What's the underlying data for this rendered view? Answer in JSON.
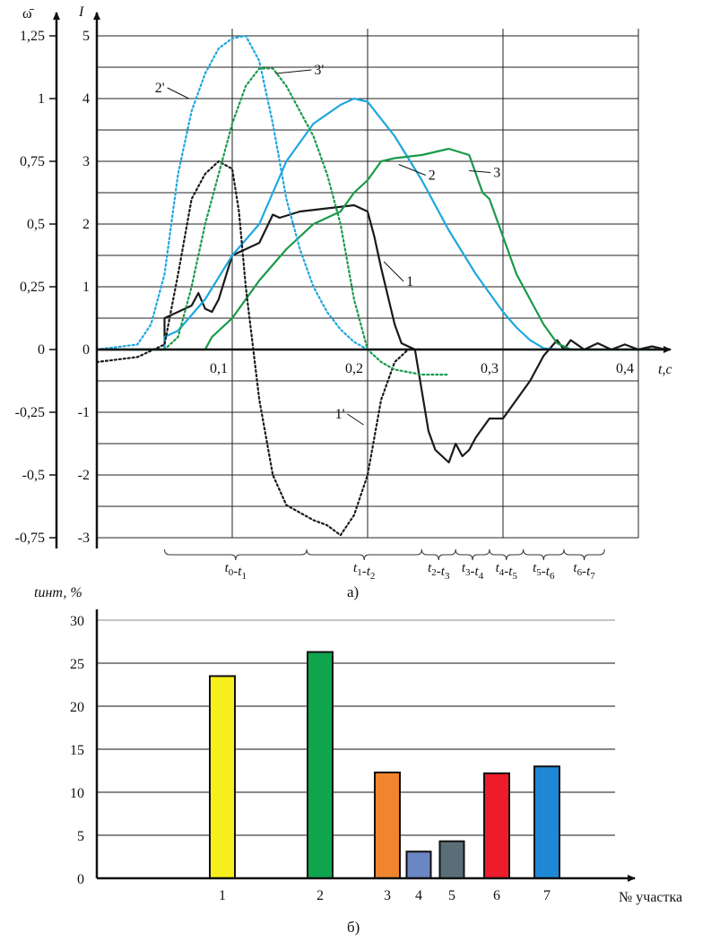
{
  "chart_data": [
    {
      "type": "line",
      "caption": "а)",
      "axis_left": {
        "label": "ω̄",
        "ylim": [
          -0.75,
          1.25
        ],
        "ticks": [
          "1,25",
          "1",
          "0,75",
          "0,5",
          "0,25",
          "0",
          "-0,25",
          "-0,5",
          "-0,75"
        ],
        "tick_values": [
          1.25,
          1,
          0.75,
          0.5,
          0.25,
          0,
          -0.25,
          -0.5,
          -0.75
        ]
      },
      "axis_right": {
        "label": "I",
        "ylim": [
          -3,
          5
        ],
        "ticks": [
          "5",
          "4",
          "3",
          "2",
          "1",
          "0",
          "-1",
          "-2",
          "-3"
        ],
        "tick_values": [
          5,
          4,
          3,
          2,
          1,
          0,
          -1,
          -2,
          -3
        ]
      },
      "x_axis": {
        "label": "t,с",
        "xlim": [
          0,
          0.42
        ],
        "ticks": [
          "0,1",
          "0,2",
          "0,3",
          "0,4"
        ],
        "tick_values": [
          0.1,
          0.2,
          0.3,
          0.4
        ]
      },
      "grid": true,
      "intervals": [
        {
          "label": "t0-t1",
          "range": [
            0.05,
            0.155
          ]
        },
        {
          "label": "t1-t2",
          "range": [
            0.155,
            0.24
          ]
        },
        {
          "label": "t2-t3",
          "range": [
            0.24,
            0.265
          ]
        },
        {
          "label": "t3-t4",
          "range": [
            0.265,
            0.29
          ]
        },
        {
          "label": "t4-t5",
          "range": [
            0.29,
            0.315
          ]
        },
        {
          "label": "t5-t6",
          "range": [
            0.315,
            0.345
          ]
        },
        {
          "label": "t6-t7",
          "range": [
            0.345,
            0.375
          ]
        }
      ],
      "series": [
        {
          "name": "1",
          "axis": "I",
          "style": "solid",
          "color": "#1a1a1a",
          "x": [
            0,
            0.05,
            0.05,
            0.07,
            0.075,
            0.08,
            0.085,
            0.09,
            0.1,
            0.11,
            0.12,
            0.13,
            0.135,
            0.15,
            0.17,
            0.19,
            0.2,
            0.205,
            0.21,
            0.22,
            0.225,
            0.23,
            0.235,
            0.245,
            0.25,
            0.255,
            0.26,
            0.265,
            0.27,
            0.275,
            0.28,
            0.29,
            0.3,
            0.31,
            0.32,
            0.33,
            0.34,
            0.345,
            0.35,
            0.36,
            0.37,
            0.38,
            0.39,
            0.4,
            0.41,
            0.42
          ],
          "y": [
            0,
            0,
            0.5,
            0.7,
            0.9,
            0.65,
            0.6,
            0.8,
            1.5,
            1.6,
            1.7,
            2.15,
            2.1,
            2.2,
            2.25,
            2.3,
            2.2,
            1.8,
            1.3,
            0.4,
            0.1,
            0.05,
            0,
            -1.3,
            -1.6,
            -1.7,
            -1.8,
            -1.5,
            -1.7,
            -1.6,
            -1.4,
            -1.1,
            -1.1,
            -0.8,
            -0.5,
            -0.1,
            0.15,
            0.0,
            0.15,
            0.0,
            0.1,
            0.0,
            0.08,
            0,
            0.05,
            0
          ]
        },
        {
          "name": "2",
          "axis": "I",
          "style": "solid",
          "color": "#1ea7df",
          "x": [
            0,
            0.05,
            0.05,
            0.06,
            0.08,
            0.1,
            0.12,
            0.14,
            0.16,
            0.18,
            0.19,
            0.2,
            0.22,
            0.24,
            0.26,
            0.28,
            0.3,
            0.31,
            0.32,
            0.33,
            0.34,
            0.35,
            0.42
          ],
          "y": [
            0,
            0,
            0.2,
            0.3,
            0.8,
            1.5,
            2.0,
            3.0,
            3.6,
            3.9,
            4.0,
            3.95,
            3.4,
            2.7,
            1.9,
            1.2,
            0.6,
            0.35,
            0.15,
            0.02,
            0,
            0,
            0
          ]
        },
        {
          "name": "3",
          "axis": "I",
          "style": "solid",
          "color": "#199a4a",
          "x": [
            0,
            0.08,
            0.085,
            0.1,
            0.12,
            0.14,
            0.16,
            0.18,
            0.19,
            0.2,
            0.21,
            0.22,
            0.24,
            0.26,
            0.275,
            0.28,
            0.285,
            0.29,
            0.3,
            0.31,
            0.32,
            0.33,
            0.34,
            0.35,
            0.42
          ],
          "y": [
            0,
            0,
            0.2,
            0.5,
            1.1,
            1.6,
            2.0,
            2.2,
            2.5,
            2.7,
            3.0,
            3.05,
            3.1,
            3.2,
            3.1,
            2.8,
            2.5,
            2.4,
            1.8,
            1.2,
            0.8,
            0.4,
            0.1,
            0,
            0
          ]
        },
        {
          "name": "1'",
          "axis": "ω̄",
          "style": "dotted",
          "color": "#1a1a1a",
          "x": [
            0,
            0.03,
            0.05,
            0.06,
            0.07,
            0.08,
            0.09,
            0.1,
            0.105,
            0.11,
            0.12,
            0.13,
            0.14,
            0.15,
            0.16,
            0.17,
            0.18,
            0.19,
            0.2,
            0.21,
            0.22,
            0.23,
            0.24
          ],
          "y": [
            -0.05,
            -0.03,
            0.02,
            0.3,
            0.6,
            0.7,
            0.75,
            0.72,
            0.55,
            0.25,
            -0.2,
            -0.5,
            -0.62,
            -0.65,
            -0.68,
            -0.7,
            -0.74,
            -0.66,
            -0.5,
            -0.2,
            -0.05,
            0,
            0
          ]
        },
        {
          "name": "2'",
          "axis": "ω̄",
          "style": "dotted",
          "color": "#1ea7df",
          "x": [
            0,
            0.03,
            0.04,
            0.05,
            0.06,
            0.07,
            0.08,
            0.09,
            0.1,
            0.11,
            0.12,
            0.13,
            0.14,
            0.15,
            0.16,
            0.17,
            0.18,
            0.19,
            0.2,
            0.21,
            0.22
          ],
          "y": [
            0,
            0.02,
            0.1,
            0.3,
            0.7,
            0.95,
            1.1,
            1.2,
            1.24,
            1.25,
            1.15,
            0.9,
            0.6,
            0.4,
            0.25,
            0.15,
            0.08,
            0.03,
            0,
            0,
            0
          ]
        },
        {
          "name": "3'",
          "axis": "ω̄",
          "style": "dotted",
          "color": "#199a4a",
          "x": [
            0,
            0.05,
            0.06,
            0.065,
            0.07,
            0.08,
            0.09,
            0.1,
            0.11,
            0.12,
            0.13,
            0.14,
            0.15,
            0.16,
            0.17,
            0.18,
            0.19,
            0.2,
            0.21,
            0.22,
            0.23,
            0.24,
            0.25,
            0.26
          ],
          "y": [
            0,
            0,
            0.05,
            0.15,
            0.25,
            0.5,
            0.7,
            0.9,
            1.05,
            1.12,
            1.12,
            1.05,
            0.95,
            0.85,
            0.7,
            0.5,
            0.2,
            0.0,
            -0.05,
            -0.08,
            -0.09,
            -0.1,
            -0.1,
            -0.1
          ]
        }
      ]
    },
    {
      "type": "bar",
      "caption": "б)",
      "ylabel": "tинт, %",
      "xlabel": "№ участка",
      "ylim": [
        0,
        30
      ],
      "yticks": [
        "0",
        "5",
        "10",
        "15",
        "20",
        "25",
        "30"
      ],
      "ytick_values": [
        0,
        5,
        10,
        15,
        20,
        25,
        30
      ],
      "grid": true,
      "categories": [
        "1",
        "2",
        "3",
        "4",
        "5",
        "6",
        "7"
      ],
      "values": [
        23.5,
        26.3,
        12.3,
        3.1,
        4.3,
        12.2,
        13.0
      ],
      "colors": [
        "#f7ef1b",
        "#0fa54d",
        "#f0852d",
        "#6a86c4",
        "#5b6e78",
        "#ed1c2b",
        "#1e88d6"
      ]
    }
  ]
}
